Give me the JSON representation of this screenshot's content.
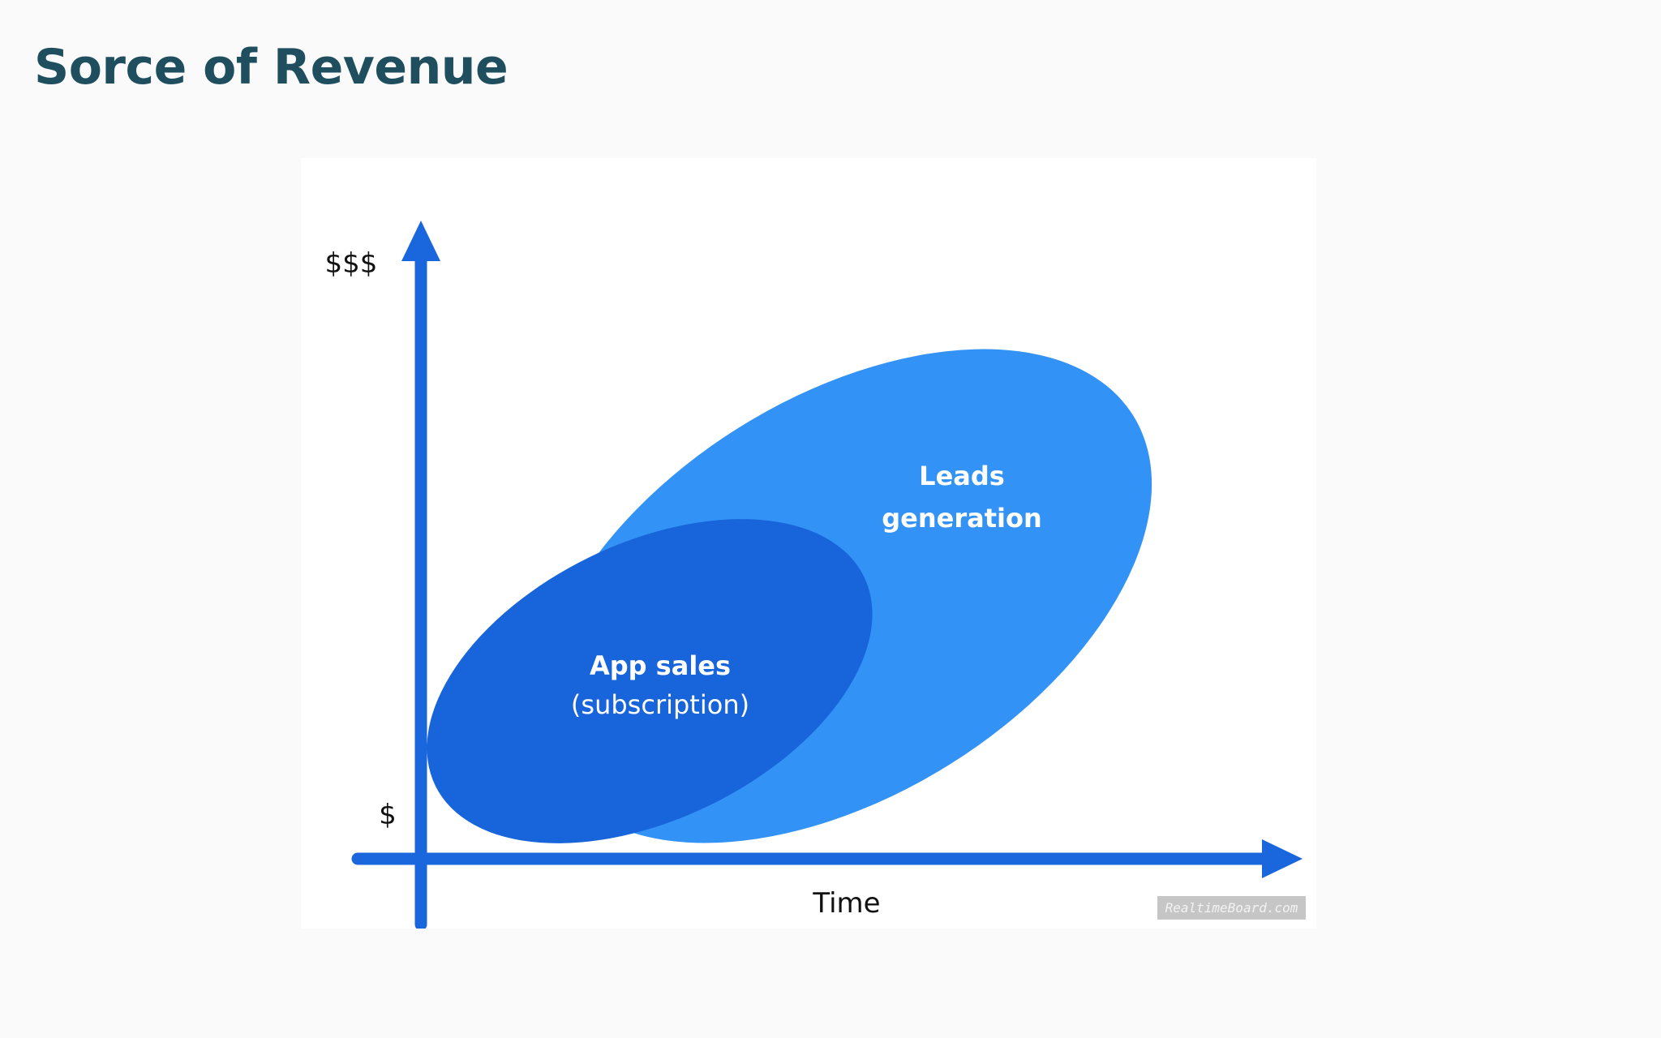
{
  "page": {
    "title": "Sorce of Revenue"
  },
  "colors": {
    "title": "#1f4e5f",
    "page_background": "#fafafb",
    "panel_background": "#ffffff",
    "axis": "#1a66dd",
    "leads_region": "#3292f5",
    "app_sales_region": "#1864da",
    "region_text": "#ffffff",
    "axis_text": "#111111",
    "watermark_background": "#c6c6c6"
  },
  "diagram": {
    "y_axis": {
      "high_label": "$$$",
      "low_label": "$"
    },
    "x_axis": {
      "label": "Time"
    },
    "regions": [
      {
        "name": "Leads generation",
        "label_lines": [
          "Leads",
          "generation"
        ]
      },
      {
        "name": "App sales",
        "label_lines": [
          "App sales",
          "(subscription)"
        ]
      }
    ],
    "watermark": "RealtimeBoard.com"
  }
}
